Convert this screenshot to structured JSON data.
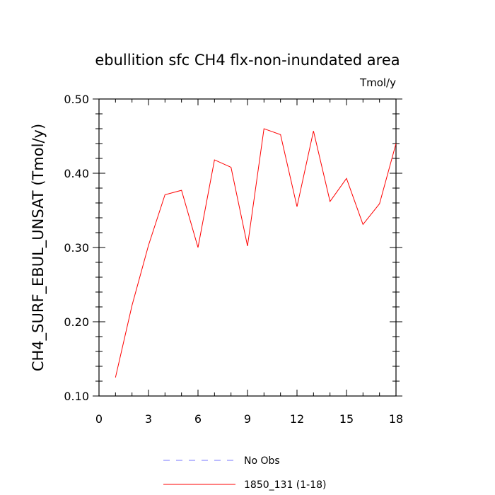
{
  "chart_data": {
    "type": "line",
    "title": "ebullition sfc CH4 flx-non-inundated area",
    "units": "Tmol/y",
    "ylabel": "CH4_SURF_EBUL_UNSAT  (Tmol/y)",
    "xlabel": "",
    "xlim": [
      0,
      18
    ],
    "ylim": [
      0.1,
      0.5
    ],
    "xticks": [
      0,
      3,
      6,
      9,
      12,
      15,
      18
    ],
    "xtick_labels": [
      "0",
      "3",
      "6",
      "9",
      "12",
      "15",
      "18"
    ],
    "yticks": [
      0.1,
      0.2,
      0.3,
      0.4,
      0.5
    ],
    "ytick_labels": [
      "0.10",
      "0.20",
      "0.30",
      "0.40",
      "0.50"
    ],
    "grid": false,
    "legend_position": "bottom",
    "series": [
      {
        "name": "1850_131 (1-18)",
        "color": "#ff0000",
        "style": "solid",
        "x": [
          1,
          2,
          3,
          4,
          5,
          6,
          7,
          8,
          9,
          10,
          11,
          12,
          13,
          14,
          15,
          16,
          17,
          18
        ],
        "values": [
          0.125,
          0.222,
          0.303,
          0.371,
          0.377,
          0.3,
          0.418,
          0.408,
          0.302,
          0.46,
          0.452,
          0.355,
          0.457,
          0.362,
          0.393,
          0.331,
          0.359,
          0.44
        ]
      }
    ],
    "legend": [
      {
        "label": "No Obs",
        "color": "#7777ff",
        "style": "dashed"
      },
      {
        "label": "1850_131 (1-18)",
        "color": "#ff0000",
        "style": "solid"
      }
    ]
  }
}
